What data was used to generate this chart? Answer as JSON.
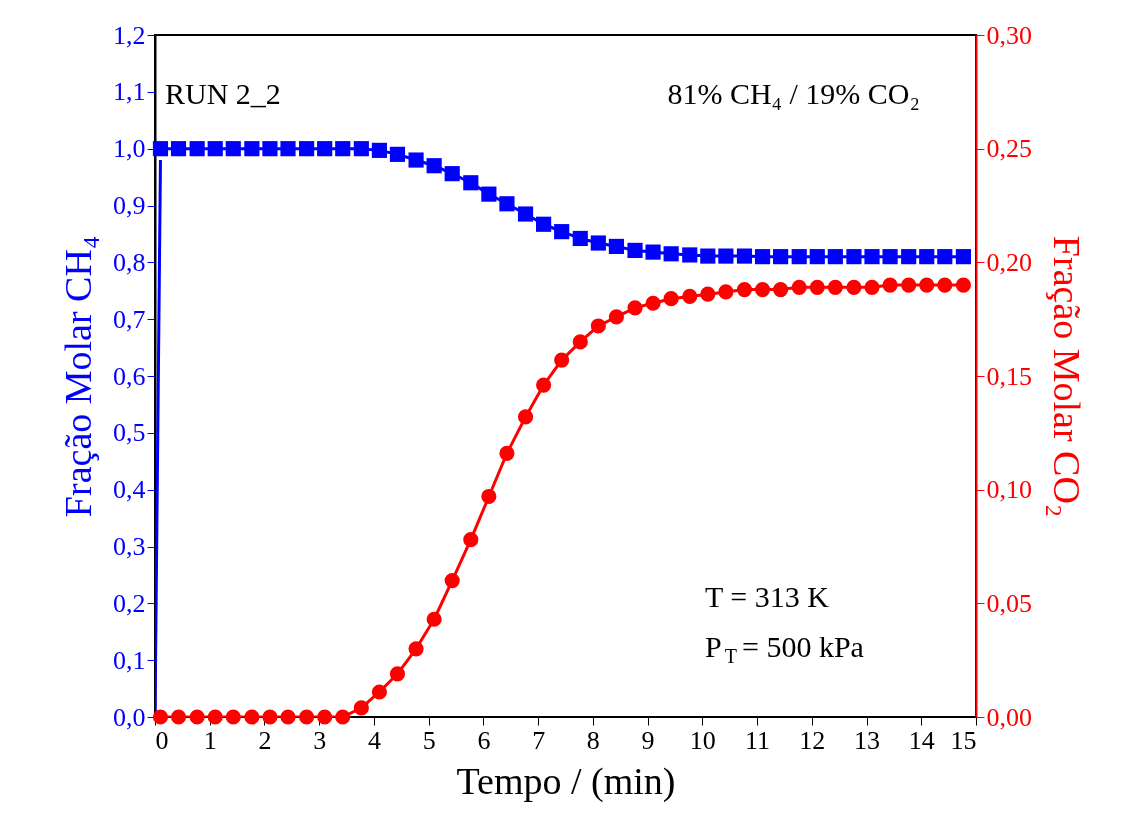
{
  "chart_data": {
    "type": "line",
    "xlabel": "Tempo / (min)",
    "ylabel": "Fração Molar CH₄",
    "y2label": "Fração Molar CO₂",
    "annotations": [
      "RUN 2_2",
      "81% CH₄ / 19% CO₂",
      "T = 313 K",
      "P$_{T}$ = 500 kPa"
    ],
    "xlim": [
      0,
      15
    ],
    "xticks": [
      0,
      1,
      2,
      3,
      4,
      5,
      6,
      7,
      8,
      9,
      10,
      11,
      12,
      13,
      14,
      15
    ],
    "ylim": [
      0,
      1.2
    ],
    "yticks": [
      {
        "value": 0,
        "label": "0,0"
      },
      {
        "value": 0.1,
        "label": "0,1"
      },
      {
        "value": 0.2,
        "label": "0,2"
      },
      {
        "value": 0.3,
        "label": "0,3"
      },
      {
        "value": 0.4,
        "label": "0,4"
      },
      {
        "value": 0.5,
        "label": "0,5"
      },
      {
        "value": 0.6,
        "label": "0,6"
      },
      {
        "value": 0.7,
        "label": "0,7"
      },
      {
        "value": 0.8,
        "label": "0,8"
      },
      {
        "value": 0.9,
        "label": "0,9"
      },
      {
        "value": 1.0,
        "label": "1,0"
      },
      {
        "value": 1.1,
        "label": "1,1"
      },
      {
        "value": 1.2,
        "label": "1,2"
      }
    ],
    "y2lim": [
      0,
      0.3
    ],
    "y2ticks": [
      {
        "value": 0,
        "label": "0,00"
      },
      {
        "value": 0.05,
        "label": "0,05"
      },
      {
        "value": 0.1,
        "label": "0,10"
      },
      {
        "value": 0.15,
        "label": "0,15"
      },
      {
        "value": 0.2,
        "label": "0,20"
      },
      {
        "value": 0.25,
        "label": "0,25"
      },
      {
        "value": 0.3,
        "label": "0,30"
      }
    ],
    "grid": false,
    "line_style": "solid",
    "series": [
      {
        "color": "#0000ff",
        "marker": "square",
        "x": [
          0.1,
          0.43,
          0.77,
          1.1,
          1.43,
          1.77,
          2.1,
          2.43,
          2.77,
          3.1,
          3.43,
          3.77,
          4.1,
          4.43,
          4.77,
          5.1,
          5.43,
          5.77,
          6.1,
          6.43,
          6.77,
          7.1,
          7.43,
          7.77,
          8.1,
          8.43,
          8.77,
          9.1,
          9.43,
          9.77,
          10.1,
          10.43,
          10.77,
          11.1,
          11.43,
          11.77,
          12.1,
          12.43,
          12.77,
          13.1,
          13.43,
          13.77,
          14.1,
          14.43,
          14.77
        ],
        "values": [
          1.0,
          1.0,
          1.0,
          1.0,
          1.0,
          1.0,
          1.0,
          1.0,
          1.0,
          1.0,
          1.0,
          1.0,
          0.997,
          0.99,
          0.98,
          0.97,
          0.956,
          0.94,
          0.92,
          0.903,
          0.885,
          0.867,
          0.854,
          0.842,
          0.834,
          0.828,
          0.821,
          0.818,
          0.815,
          0.813,
          0.811,
          0.811,
          0.811,
          0.81,
          0.81,
          0.81,
          0.81,
          0.81,
          0.81,
          0.81,
          0.81,
          0.81,
          0.81,
          0.81,
          0.81
        ]
      },
      {
        "color": "#0000ff",
        "marker": "none",
        "x": [
          0,
          0.1
        ],
        "values": [
          0,
          0.98
        ]
      },
      {
        "color": "#ff0000",
        "marker": "circle",
        "axis": "y2",
        "x": [
          0.1,
          0.43,
          0.77,
          1.1,
          1.43,
          1.77,
          2.1,
          2.43,
          2.77,
          3.1,
          3.43,
          3.77,
          4.1,
          4.43,
          4.77,
          5.1,
          5.43,
          5.77,
          6.1,
          6.43,
          6.77,
          7.1,
          7.43,
          7.77,
          8.1,
          8.43,
          8.77,
          9.1,
          9.43,
          9.77,
          10.1,
          10.43,
          10.77,
          11.1,
          11.43,
          11.77,
          12.1,
          12.43,
          12.77,
          13.1,
          13.43,
          13.77,
          14.1,
          14.43,
          14.77
        ],
        "values": [
          0,
          0,
          0,
          0,
          0,
          0,
          0,
          0,
          0,
          0,
          0,
          0.004,
          0.011,
          0.019,
          0.03,
          0.043,
          0.06,
          0.078,
          0.097,
          0.116,
          0.132,
          0.146,
          0.157,
          0.165,
          0.172,
          0.176,
          0.18,
          0.182,
          0.184,
          0.185,
          0.186,
          0.187,
          0.188,
          0.188,
          0.188,
          0.189,
          0.189,
          0.189,
          0.189,
          0.189,
          0.19,
          0.19,
          0.19,
          0.19,
          0.19
        ]
      }
    ]
  }
}
